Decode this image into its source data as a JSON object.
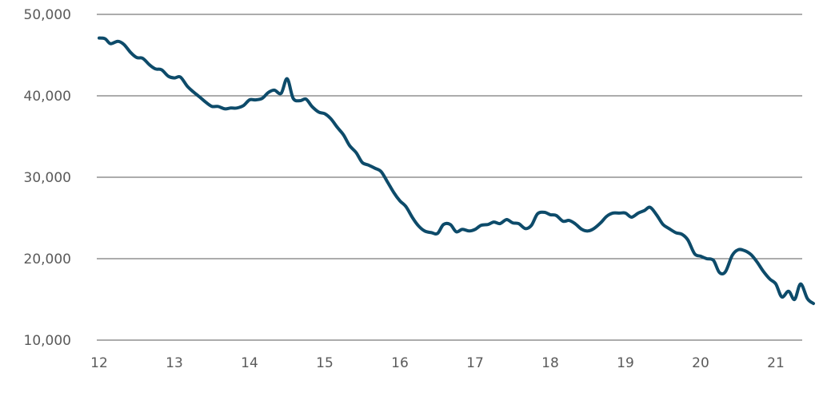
{
  "chart_data": {
    "type": "line",
    "title": "",
    "xlabel": "",
    "ylabel": "",
    "xlim": [
      12,
      21.4
    ],
    "ylim": [
      10000,
      50000
    ],
    "grid": true,
    "legend": "none",
    "x_ticks": [
      {
        "value": 12,
        "label": "12"
      },
      {
        "value": 13,
        "label": "13"
      },
      {
        "value": 14,
        "label": "14"
      },
      {
        "value": 15,
        "label": "15"
      },
      {
        "value": 16,
        "label": "16"
      },
      {
        "value": 17,
        "label": "17"
      },
      {
        "value": 18,
        "label": "18"
      },
      {
        "value": 19,
        "label": "19"
      },
      {
        "value": 20,
        "label": "20"
      },
      {
        "value": 21,
        "label": "21"
      }
    ],
    "y_ticks": [
      {
        "value": 10000,
        "label": "10,000"
      },
      {
        "value": 20000,
        "label": "20,000"
      },
      {
        "value": 30000,
        "label": "30,000"
      },
      {
        "value": 40000,
        "label": "40,000"
      },
      {
        "value": 50000,
        "label": "50,000"
      }
    ],
    "series": [
      {
        "color": "#0d4b6a",
        "points": [
          [
            12.0,
            47100
          ],
          [
            12.08,
            47000
          ],
          [
            12.15,
            46400
          ],
          [
            12.25,
            46700
          ],
          [
            12.33,
            46300
          ],
          [
            12.42,
            45300
          ],
          [
            12.5,
            44700
          ],
          [
            12.58,
            44600
          ],
          [
            12.67,
            43800
          ],
          [
            12.75,
            43300
          ],
          [
            12.83,
            43200
          ],
          [
            12.92,
            42400
          ],
          [
            13.0,
            42200
          ],
          [
            13.08,
            42300
          ],
          [
            13.17,
            41200
          ],
          [
            13.25,
            40500
          ],
          [
            13.33,
            39900
          ],
          [
            13.42,
            39200
          ],
          [
            13.5,
            38700
          ],
          [
            13.58,
            38700
          ],
          [
            13.67,
            38400
          ],
          [
            13.75,
            38500
          ],
          [
            13.83,
            38500
          ],
          [
            13.92,
            38800
          ],
          [
            14.0,
            39500
          ],
          [
            14.08,
            39500
          ],
          [
            14.17,
            39700
          ],
          [
            14.25,
            40400
          ],
          [
            14.33,
            40700
          ],
          [
            14.42,
            40300
          ],
          [
            14.5,
            42100
          ],
          [
            14.58,
            39700
          ],
          [
            14.67,
            39400
          ],
          [
            14.75,
            39600
          ],
          [
            14.83,
            38700
          ],
          [
            14.92,
            38000
          ],
          [
            15.0,
            37800
          ],
          [
            15.08,
            37200
          ],
          [
            15.17,
            36100
          ],
          [
            15.25,
            35200
          ],
          [
            15.33,
            33900
          ],
          [
            15.42,
            33000
          ],
          [
            15.5,
            31800
          ],
          [
            15.58,
            31500
          ],
          [
            15.67,
            31100
          ],
          [
            15.75,
            30700
          ],
          [
            15.83,
            29500
          ],
          [
            15.92,
            28100
          ],
          [
            16.0,
            27100
          ],
          [
            16.08,
            26400
          ],
          [
            16.17,
            25000
          ],
          [
            16.25,
            24000
          ],
          [
            16.33,
            23400
          ],
          [
            16.42,
            23200
          ],
          [
            16.5,
            23100
          ],
          [
            16.58,
            24200
          ],
          [
            16.67,
            24200
          ],
          [
            16.75,
            23300
          ],
          [
            16.83,
            23600
          ],
          [
            16.92,
            23400
          ],
          [
            17.0,
            23600
          ],
          [
            17.08,
            24100
          ],
          [
            17.17,
            24200
          ],
          [
            17.25,
            24500
          ],
          [
            17.33,
            24300
          ],
          [
            17.42,
            24800
          ],
          [
            17.5,
            24400
          ],
          [
            17.58,
            24300
          ],
          [
            17.67,
            23700
          ],
          [
            17.75,
            24100
          ],
          [
            17.83,
            25500
          ],
          [
            17.92,
            25700
          ],
          [
            18.0,
            25400
          ],
          [
            18.08,
            25300
          ],
          [
            18.17,
            24600
          ],
          [
            18.25,
            24700
          ],
          [
            18.33,
            24300
          ],
          [
            18.42,
            23600
          ],
          [
            18.5,
            23400
          ],
          [
            18.58,
            23700
          ],
          [
            18.67,
            24400
          ],
          [
            18.75,
            25200
          ],
          [
            18.83,
            25600
          ],
          [
            18.92,
            25600
          ],
          [
            19.0,
            25600
          ],
          [
            19.08,
            25100
          ],
          [
            19.17,
            25600
          ],
          [
            19.25,
            25900
          ],
          [
            19.33,
            26300
          ],
          [
            19.42,
            25300
          ],
          [
            19.5,
            24200
          ],
          [
            19.58,
            23700
          ],
          [
            19.67,
            23200
          ],
          [
            19.75,
            23000
          ],
          [
            19.83,
            22300
          ],
          [
            19.92,
            20600
          ],
          [
            20.0,
            20300
          ],
          [
            20.08,
            20000
          ],
          [
            20.17,
            19800
          ],
          [
            20.25,
            18300
          ],
          [
            20.33,
            18400
          ],
          [
            20.42,
            20400
          ],
          [
            20.5,
            21100
          ],
          [
            20.58,
            21000
          ],
          [
            20.67,
            20500
          ],
          [
            20.75,
            19600
          ],
          [
            20.83,
            18500
          ],
          [
            20.92,
            17500
          ],
          [
            21.0,
            16900
          ],
          [
            21.08,
            15300
          ],
          [
            21.17,
            16000
          ],
          [
            21.25,
            15000
          ],
          [
            21.33,
            16900
          ],
          [
            21.42,
            15100
          ],
          [
            21.5,
            14500
          ]
        ]
      }
    ]
  }
}
